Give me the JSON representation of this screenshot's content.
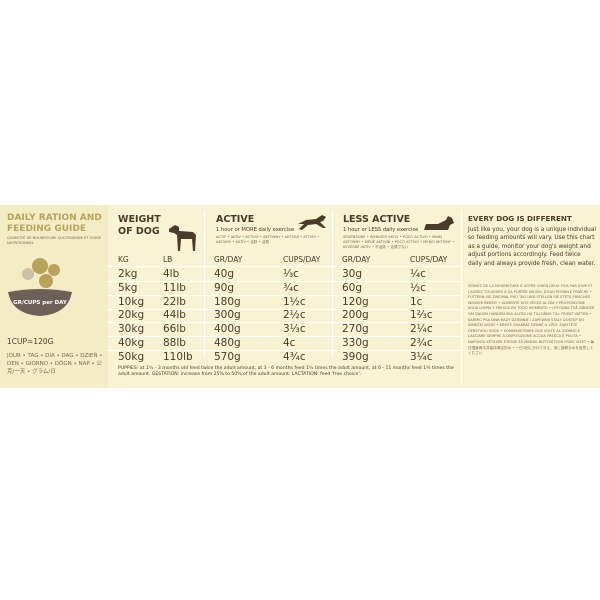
{
  "guide": {
    "title": "DAILY RATION AND FEEDING GUIDE",
    "subtitle": "QUANTITÉ DE NOURRITURE QUOTIDIENNE ET GUIDE NUTRITIONNEL",
    "icon_label": "GR/CUPS per DAY",
    "cup_note": "1CUP=120G",
    "languages": "JOUR • TAG • DÍA • DAG • DZIEŃ • DEN • GIORNO • DÖGN • NAP • 公克/一天 • グラム/日",
    "weight": {
      "title": "WEIGHT OF DOG",
      "headers": [
        "KG",
        "LB"
      ]
    },
    "active": {
      "title": "ACTIVE",
      "note": "1 hour or MORE daily exercise",
      "translations": "ACTIF • AKTIV • ACTIVO • AKTYWNY • AKTIVNÍ • ATTIVO • AKTIVNÝ • AKTÍV • 活跃 • 活発",
      "headers": [
        "GR/DAY",
        "CUPS/DAY"
      ]
    },
    "less_active": {
      "title": "LESS ACTIVE",
      "note": "1 hour or LESS daily exercise",
      "translations": "SÉDENTAIRE • WENIGER AKTIV • POCO ACTIVO • MNIEJ AKTYWNY • MÉNĚ AKTIVNÍ • POCO ATTIVO • MENEJ AKTÍVNY • KEVÉSBÉ AKTÍV • 不活跃 • 活発でない",
      "headers": [
        "GR/DAY",
        "CUPS/DAY"
      ]
    },
    "rows": [
      [
        "2kg",
        "4lb",
        "40g",
        "⅓c",
        "30g",
        "¼c"
      ],
      [
        "5kg",
        "11lb",
        "90g",
        "¾c",
        "60g",
        "½c"
      ],
      [
        "10kg",
        "22lb",
        "180g",
        "1½c",
        "120g",
        "1c"
      ],
      [
        "20kg",
        "44lb",
        "300g",
        "2½c",
        "200g",
        "1⅔c"
      ],
      [
        "30kg",
        "66lb",
        "400g",
        "3⅓c",
        "270g",
        "2¼c"
      ],
      [
        "40kg",
        "88lb",
        "480g",
        "4c",
        "330g",
        "2¾c"
      ],
      [
        "50kg",
        "110lb",
        "570g",
        "4¾c",
        "390g",
        "3¼c"
      ]
    ],
    "info": {
      "title": "EVERY DOG IS DIFFERENT",
      "text": "Just like you, your dog is a unique individual so feeding amounts will vary. Use this chart as a guide, monitor your dog's weight and adjust portions accordingly. Feed twice daily and always provide fresh, clean water.",
      "translations": "SERVEZ DE LA NOURRITURE À VOTRE CHIEN DEUX FOIS PAR JOUR ET LAISSEZ TOUJOURS À SA PORTÉE UN BOL D'EAU POTABLE FRAÎCHE • FÜTTERN SIE ZWEIMAL PRO TAG UND STELLEN SIE STETS FRISCHES WASSER BEREIT • ALIMENTE DOS VECES AL DÍA Y PROPORCIONE AGUA LIMPIA Y FRESCA EN TODO MOMENTO • UTFODRA TVÅ GÅNGER OM DAGEN HUNDEN SKA ALLTID HA TILLGÅNG TILL FRISKT VATTEN • KARMIĆ PSA DWA RAZY DZIENNIE I ZAPEWNIJ STAŁY DOSTĘP DO ŚWIEŻEJ WODY • KRMTE DVAKRÁT DENNĚ A VŽDY ZAJISTĚTE ČERSTVOU VODU • SOMMINISTRARE DUE VOLTE AL GIORNO E LASCIARE SEMPRE A DISPOSIZIONE ACQUA FRESCA E PULITA • NAPONTA KÉTSZER ETESSE ÉS MINDIG BIZTOSÍTSON FRISS VIZET • 每日喂食两次并保持清洁饮水 • 一日2回に分けて与え、常に新鮮な水を用意してください"
    },
    "footnote": "PUPPIES: at 1½ - 3 months old feed twice the adult amount, at 3 - 6 months feed 1½ times the adult amount, at 6 - 11 months feed 1¼ times the adult amount. GESTATION: increase from 25% to 50% of the adult amount. LACTATION: feed 'free choice'."
  }
}
